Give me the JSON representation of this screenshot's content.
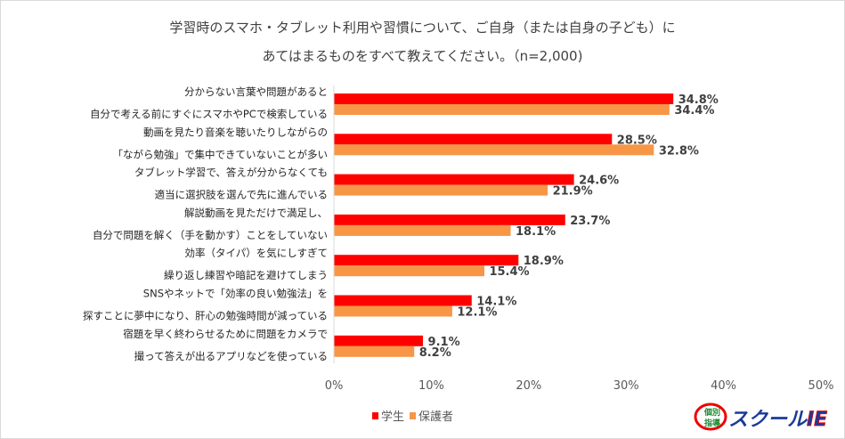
{
  "chart_data": {
    "type": "bar",
    "orientation": "horizontal",
    "title_lines": [
      "学習時のスマホ・タブレット利用や習慣について、ご自身（または自身の子ども）に",
      "あてはまるものをすべて教えてください。（n=2,000)"
    ],
    "categories": [
      [
        "分からない言葉や問題があると",
        "自分で考える前にすぐにスマホやPCで検索している"
      ],
      [
        "動画を見たり音楽を聴いたりしながらの",
        "「ながら勉強」で集中できていないことが多い"
      ],
      [
        "タブレット学習で、答えが分からなくても",
        "適当に選択肢を選んで先に進んでいる"
      ],
      [
        "解説動画を見ただけで満足し、",
        "自分で問題を解く（手を動かす）ことをしていない"
      ],
      [
        "効率（タイパ）を気にしすぎて",
        "繰り返し練習や暗記を避けてしまう"
      ],
      [
        "SNSやネットで「効率の良い勉強法」を",
        "探すことに夢中になり、肝心の勉強時間が減っている"
      ],
      [
        "宿題を早く終わらせるために問題をカメラで",
        "撮って答えが出るアプリなどを使っている"
      ]
    ],
    "series": [
      {
        "name": "学生",
        "color": "#ff0000",
        "values": [
          34.8,
          28.5,
          24.6,
          23.7,
          18.9,
          14.1,
          9.1
        ]
      },
      {
        "name": "保護者",
        "color": "#f79646",
        "values": [
          34.4,
          32.8,
          21.9,
          18.1,
          15.4,
          12.1,
          8.2
        ]
      }
    ],
    "xlim": [
      0,
      50
    ],
    "xticks": [
      "0%",
      "10%",
      "20%",
      "30%",
      "40%",
      "50%"
    ],
    "value_suffix": "%",
    "grid": false,
    "legend_position": "bottom"
  },
  "logo": {
    "text_small": "個別指導",
    "text_main": "スクールIE"
  }
}
